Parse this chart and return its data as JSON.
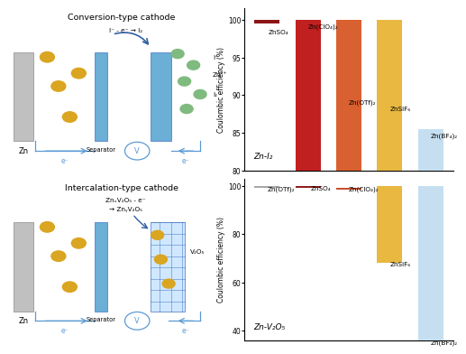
{
  "chart1": {
    "title": "Zn-I₂",
    "ylabel": "Coulombic efficiency (%)",
    "ylim": [
      80,
      101.5
    ],
    "yticks": [
      80,
      85,
      90,
      95,
      100
    ],
    "categories": [
      "ZnSO₄",
      "Zn(ClO₄)₂",
      "Zn(OTf)₂",
      "ZnSiF₆",
      "Zn(BF₄)₂"
    ],
    "bar_bottoms": [
      99.5,
      80,
      80,
      80,
      80
    ],
    "bar_tops": [
      100.0,
      100.0,
      100.0,
      100.0,
      85.5
    ],
    "colors": [
      "#8B1515",
      "#C02020",
      "#D96030",
      "#E8B840",
      "#C5DFF0"
    ],
    "label_x_offsets": [
      -0.25,
      -0.28,
      -0.28,
      -0.28,
      -0.28
    ],
    "label_y_vals": [
      98.8,
      99.5,
      89.5,
      88.5,
      85.0
    ],
    "label_ha": [
      "left",
      "left",
      "left",
      "left",
      "left"
    ]
  },
  "chart2": {
    "title": "Zn-V₂O₅",
    "ylabel": "Coulombic efficiency (%)",
    "ylim": [
      36,
      103
    ],
    "yticks": [
      40,
      60,
      80,
      100
    ],
    "categories": [
      "Zn(OTf)₂",
      "ZnSO₄",
      "Zn(ClO₄)₂",
      "ZnSiF₆",
      "Zn(BF₄)₂"
    ],
    "bar_bottoms": [
      99.2,
      99.2,
      98.5,
      68.0,
      36.0
    ],
    "bar_tops": [
      99.8,
      99.8,
      99.3,
      100.0,
      100.0
    ],
    "colors": [
      "#A8A8A8",
      "#902020",
      "#C85030",
      "#E8B840",
      "#C5DFF0"
    ],
    "label_x_offsets": [
      -0.28,
      -0.22,
      -0.28,
      -0.28,
      -0.28
    ],
    "label_y_vals": [
      100.0,
      100.0,
      99.8,
      68.5,
      36.5
    ],
    "label_ha": [
      "left",
      "left",
      "left",
      "left",
      "left"
    ]
  },
  "bg_color": "#FFFFFF",
  "border_color": "#CCCCCC"
}
